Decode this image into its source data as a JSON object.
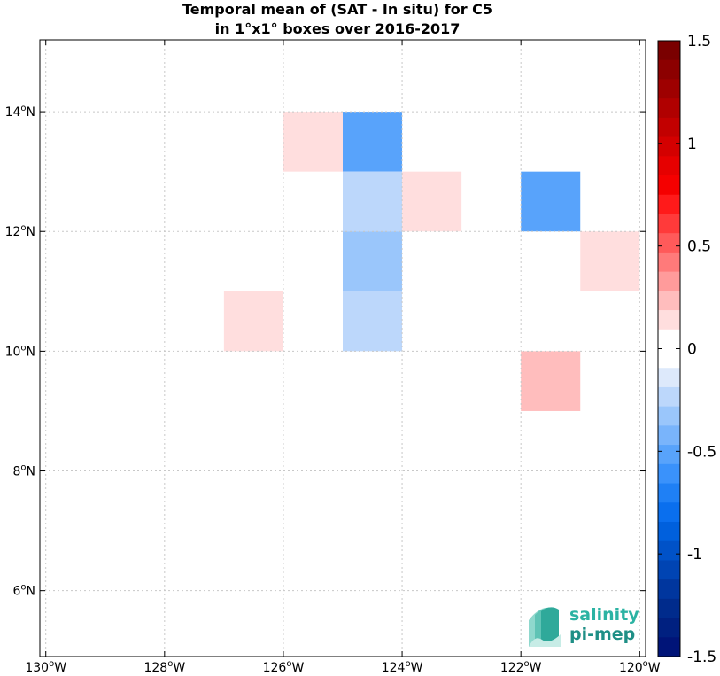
{
  "chart_data": {
    "type": "heatmap",
    "title_line1": "Temporal mean of (SAT - In situ) for C5",
    "title_line2": "in 1°x1° boxes over 2016-2017",
    "xlim": [
      -130.1,
      -119.9
    ],
    "ylim": [
      4.9,
      15.2
    ],
    "x_ticks": [
      {
        "value": -130,
        "label": "130°W"
      },
      {
        "value": -128,
        "label": "128°W"
      },
      {
        "value": -126,
        "label": "126°W"
      },
      {
        "value": -124,
        "label": "124°W"
      },
      {
        "value": -122,
        "label": "122°W"
      },
      {
        "value": -120,
        "label": "120°W"
      }
    ],
    "y_ticks": [
      {
        "value": 6,
        "label": "6°N"
      },
      {
        "value": 8,
        "label": "8°N"
      },
      {
        "value": 10,
        "label": "10°N"
      },
      {
        "value": 12,
        "label": "12°N"
      },
      {
        "value": 14,
        "label": "14°N"
      }
    ],
    "grid": true,
    "cells": [
      {
        "lon": -126,
        "lat": 13,
        "value": 0.15
      },
      {
        "lon": -125,
        "lat": 13,
        "value": -0.55
      },
      {
        "lon": -125,
        "lat": 12,
        "value": -0.25
      },
      {
        "lon": -124,
        "lat": 12,
        "value": 0.15
      },
      {
        "lon": -125,
        "lat": 11,
        "value": -0.35
      },
      {
        "lon": -125,
        "lat": 10,
        "value": -0.25
      },
      {
        "lon": -127,
        "lat": 10,
        "value": 0.15
      },
      {
        "lon": -122,
        "lat": 12,
        "value": -0.55
      },
      {
        "lon": -121,
        "lat": 11,
        "value": 0.15
      },
      {
        "lon": -122,
        "lat": 9,
        "value": 0.25
      }
    ],
    "colorbar": {
      "min": -1.5,
      "max": 1.5,
      "ticks": [
        {
          "value": 1.5,
          "label": "1.5"
        },
        {
          "value": 1,
          "label": "1"
        },
        {
          "value": 0.5,
          "label": "0.5"
        },
        {
          "value": 0,
          "label": "0"
        },
        {
          "value": -0.5,
          "label": "-0.5"
        },
        {
          "value": -1,
          "label": "-1"
        },
        {
          "value": -1.5,
          "label": "-1.5"
        }
      ],
      "colors_top_to_bottom": [
        "#7a0000",
        "#8c0000",
        "#9e0000",
        "#b00000",
        "#c20000",
        "#d40000",
        "#e60000",
        "#f50000",
        "#ff1a1a",
        "#ff3a3a",
        "#ff5a5a",
        "#ff7a7a",
        "#ff9b9b",
        "#ffbdbd",
        "#ffdede",
        "#ffffff",
        "#ffffff",
        "#dde9fb",
        "#bcd7fb",
        "#9ac6fb",
        "#79b4fb",
        "#58a3fb",
        "#3a92fb",
        "#1f80f5",
        "#0a6fee",
        "#0060dd",
        "#0052c8",
        "#0044b3",
        "#00369e",
        "#002b8c",
        "#002080",
        "#001478"
      ]
    },
    "logo": {
      "line1": "salinity",
      "line2": "pi-mep"
    }
  }
}
